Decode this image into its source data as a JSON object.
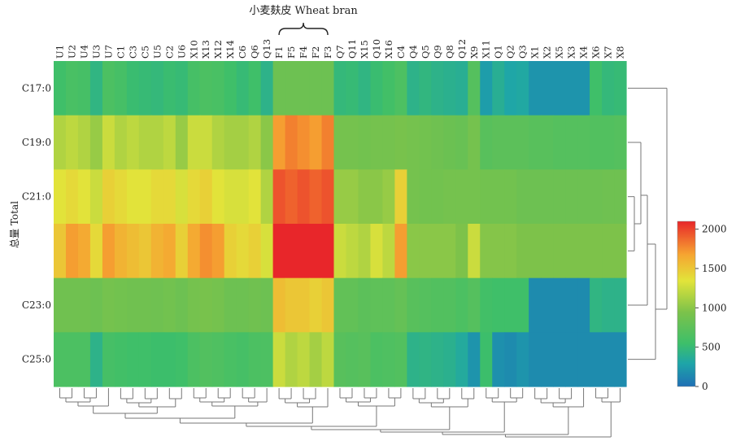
{
  "chart_data": {
    "type": "heatmap",
    "title": "小麦麸皮 Wheat bran",
    "ylabel": "总量 Total",
    "columns": [
      "U1",
      "U2",
      "U4",
      "U3",
      "U7",
      "C1",
      "C3",
      "C5",
      "U5",
      "C2",
      "U6",
      "X10",
      "X13",
      "X12",
      "X14",
      "C6",
      "Q6",
      "Q13",
      "F1",
      "F5",
      "F4",
      "F2",
      "F3",
      "Q7",
      "Q11",
      "X15",
      "Q10",
      "X16",
      "C4",
      "Q4",
      "Q5",
      "Q9",
      "Q8",
      "Q12",
      "X9",
      "X11",
      "Q1",
      "Q2",
      "Q3",
      "X1",
      "X2",
      "X5",
      "X3",
      "X4",
      "X6",
      "X7",
      "X8"
    ],
    "rows": [
      "C17:0",
      "C19:0",
      "C21:0",
      "",
      "C23:0",
      "C25:0"
    ],
    "colorbar": {
      "min": 0,
      "max": 2100,
      "ticks": [
        0,
        500,
        1000,
        1500,
        2000
      ]
    },
    "values": [
      [
        560,
        620,
        600,
        450,
        640,
        600,
        520,
        500,
        480,
        520,
        500,
        600,
        640,
        620,
        560,
        500,
        560,
        420,
        850,
        850,
        850,
        850,
        850,
        480,
        500,
        450,
        520,
        580,
        650,
        420,
        460,
        420,
        400,
        380,
        700,
        250,
        380,
        300,
        320,
        200,
        200,
        200,
        200,
        200,
        560,
        480,
        500
      ],
      [
        1150,
        1200,
        1150,
        1050,
        1250,
        1150,
        1200,
        1150,
        1150,
        1200,
        1050,
        1250,
        1250,
        1150,
        1100,
        1100,
        1150,
        1000,
        1700,
        1800,
        1750,
        1700,
        1800,
        900,
        900,
        880,
        900,
        900,
        920,
        900,
        880,
        860,
        840,
        820,
        900,
        720,
        740,
        740,
        740,
        720,
        720,
        700,
        700,
        700,
        680,
        680,
        700
      ],
      [
        1350,
        1400,
        1350,
        1250,
        1450,
        1400,
        1350,
        1350,
        1400,
        1400,
        1300,
        1400,
        1450,
        1350,
        1300,
        1300,
        1350,
        1150,
        1950,
        1900,
        1950,
        1900,
        1950,
        1050,
        1050,
        1000,
        1000,
        1050,
        1450,
        900,
        880,
        880,
        900,
        900,
        900,
        880,
        880,
        880,
        850,
        850,
        850,
        850,
        850,
        850,
        850,
        860,
        860
      ],
      [
        1500,
        1700,
        1650,
        1400,
        1700,
        1600,
        1550,
        1500,
        1600,
        1650,
        1450,
        1650,
        1750,
        1700,
        1450,
        1400,
        1450,
        1300,
        2100,
        2100,
        2100,
        2100,
        2100,
        1250,
        1200,
        1150,
        1300,
        1200,
        1700,
        1000,
        1000,
        1000,
        1000,
        950,
        1250,
        980,
        980,
        980,
        950,
        950,
        950,
        950,
        950,
        950,
        950,
        950,
        950
      ],
      [
        870,
        870,
        870,
        850,
        900,
        880,
        870,
        870,
        860,
        880,
        850,
        900,
        920,
        900,
        850,
        850,
        870,
        850,
        1550,
        1500,
        1500,
        1450,
        1500,
        780,
        780,
        740,
        760,
        760,
        800,
        720,
        700,
        680,
        680,
        640,
        700,
        580,
        560,
        560,
        560,
        150,
        150,
        150,
        150,
        150,
        450,
        420,
        420
      ],
      [
        640,
        640,
        640,
        420,
        600,
        580,
        560,
        560,
        540,
        540,
        560,
        640,
        680,
        660,
        620,
        600,
        640,
        650,
        1250,
        1150,
        1200,
        1100,
        1200,
        720,
        700,
        720,
        640,
        660,
        680,
        420,
        440,
        420,
        400,
        340,
        200,
        540,
        180,
        150,
        200,
        150,
        150,
        150,
        150,
        150,
        160,
        160,
        160
      ]
    ]
  }
}
